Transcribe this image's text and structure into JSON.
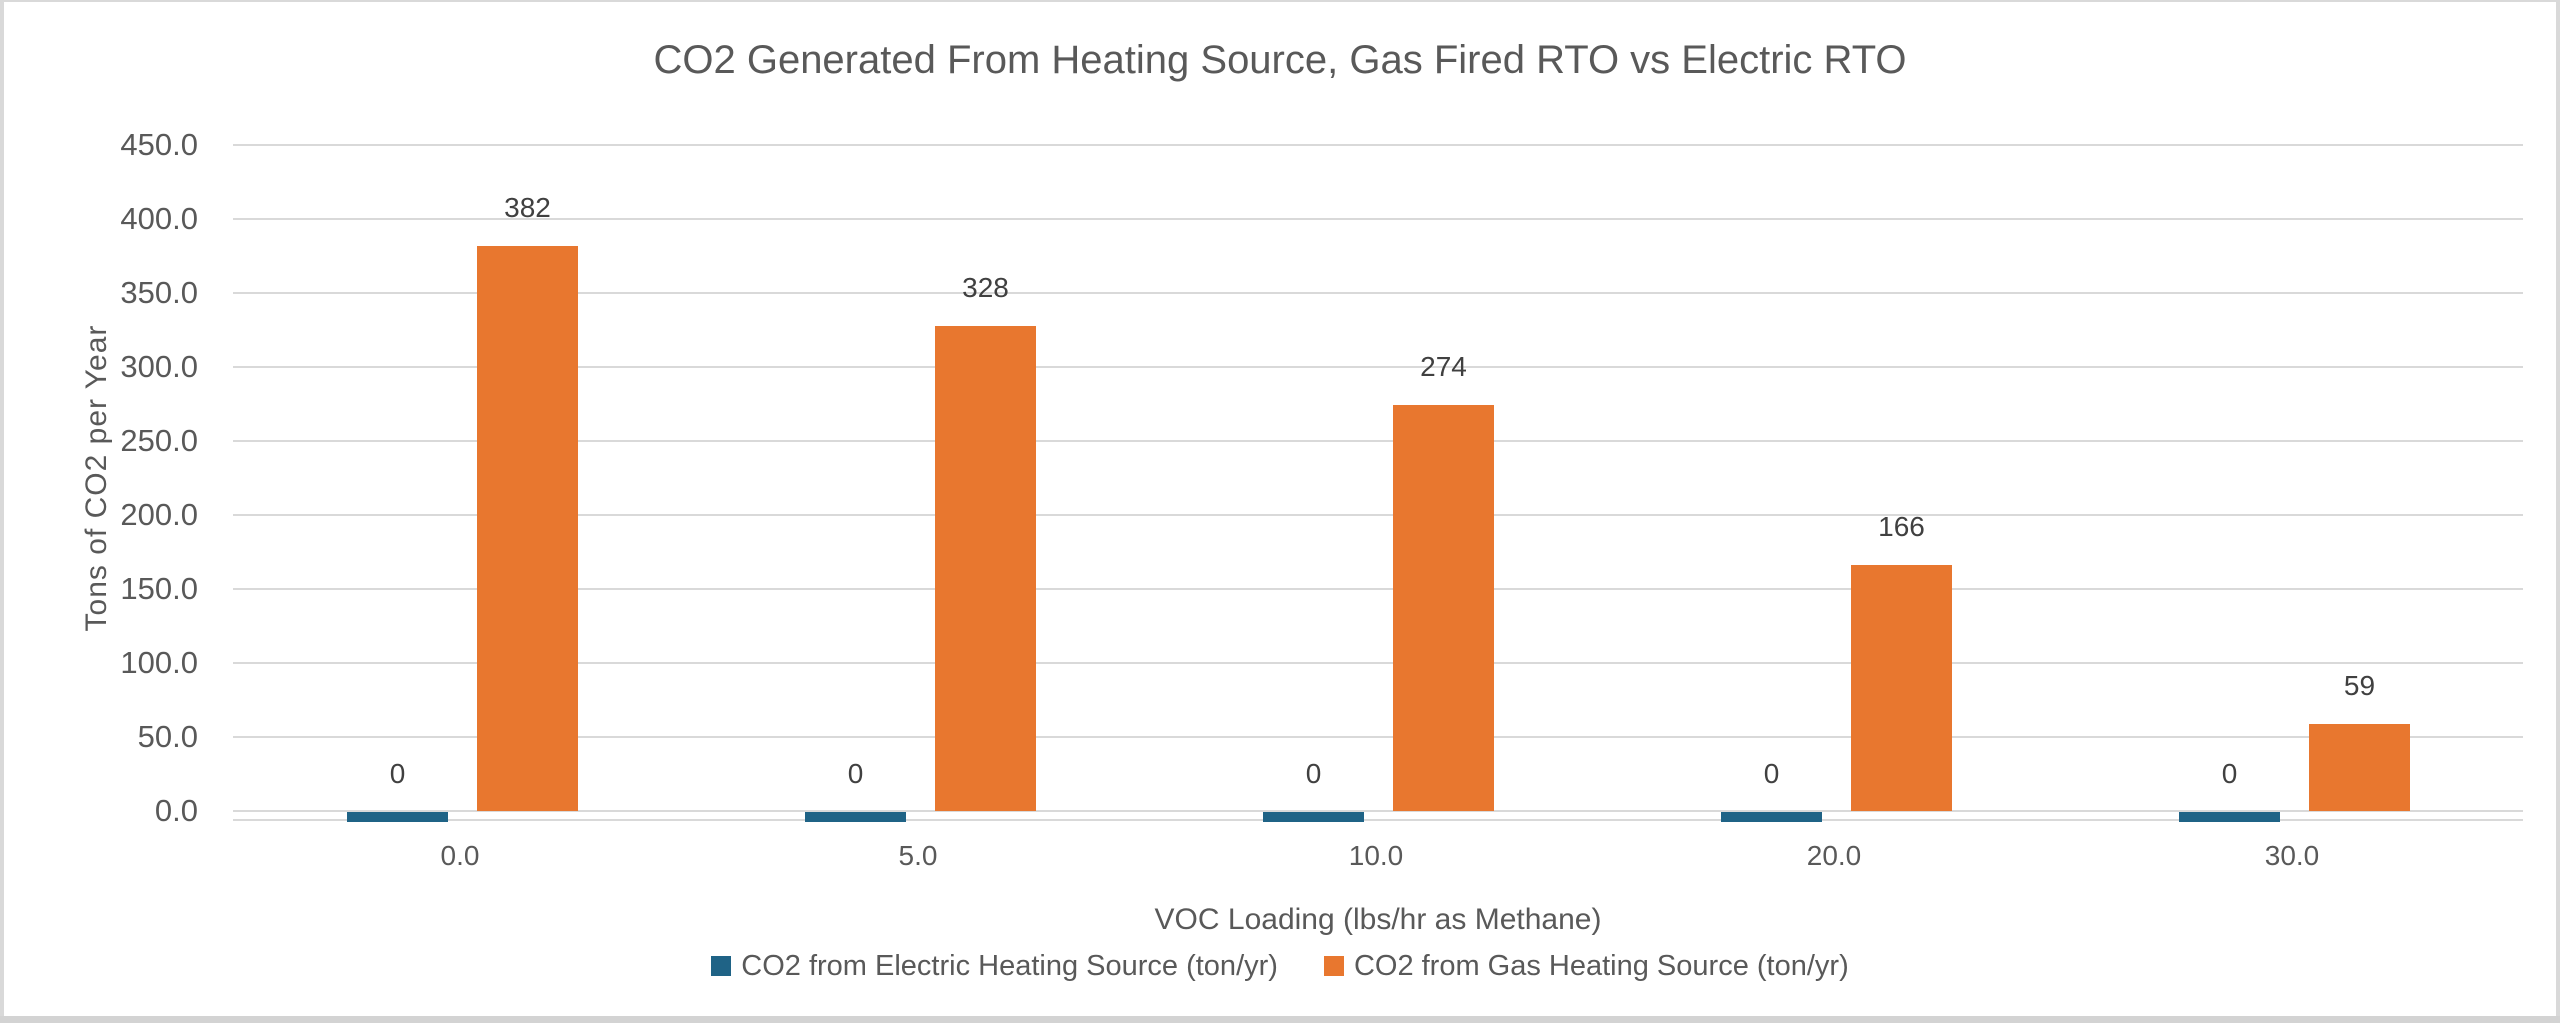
{
  "page": {
    "background": "#FFFFFF",
    "border_color": "#D9D9D9",
    "bottom_strip_color": "#D3D3D3"
  },
  "chart_data": {
    "type": "bar",
    "title": "CO2 Generated From Heating Source, Gas Fired RTO vs Electric RTO",
    "xlabel": "VOC Loading (lbs/hr as Methane)",
    "ylabel": "Tons of CO2 per Year",
    "categories": [
      "0.0",
      "5.0",
      "10.0",
      "20.0",
      "30.0"
    ],
    "series": [
      {
        "name": "CO2 from Electric Heating Source (ton/yr)",
        "color": "#1F6386",
        "values": [
          0,
          0,
          0,
          0,
          0
        ],
        "data_labels": [
          "0",
          "0",
          "0",
          "0",
          "0"
        ]
      },
      {
        "name": "CO2 from Gas Heating Source (ton/yr)",
        "color": "#E8772F",
        "values": [
          382,
          328,
          274,
          166,
          59
        ],
        "data_labels": [
          "382",
          "328",
          "274",
          "166",
          "59"
        ]
      }
    ],
    "ylim": [
      0,
      450
    ],
    "ytick_step": 50,
    "ytick_labels": [
      "0.0",
      "50.0",
      "100.0",
      "150.0",
      "200.0",
      "250.0",
      "300.0",
      "350.0",
      "400.0",
      "450.0"
    ],
    "grid": true,
    "gridline_color": "#D9D9D9",
    "axis_text_color": "#595959",
    "data_label_color": "#404040",
    "legend_position": "bottom"
  }
}
